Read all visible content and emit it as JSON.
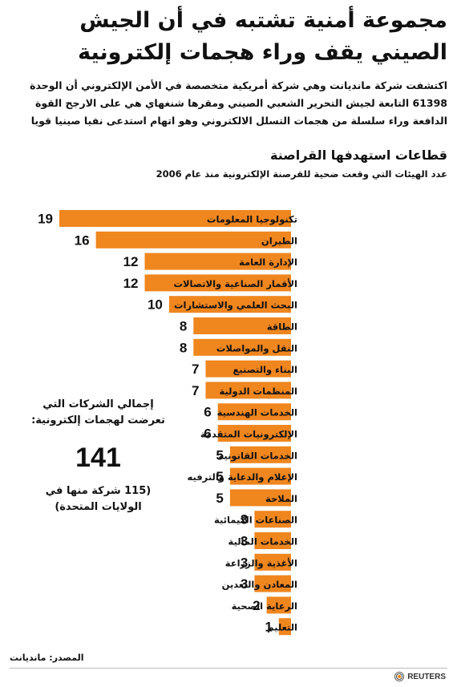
{
  "title": "مجموعة أمنية تشتبه في أن الجيش الصيني يقف وراء هجمات إلكترونية",
  "intro": "اكتشفت شركة مانديانت وهي شركة أمريكية متخصصة في الأمن الإلكتروني أن الوحدة 61398 التابعة لجيش التحرير الشعبي الصيني ومقرها شنغهاي هي على الارجح القوة الدافعة وراء سلسلة من هجمات التسلل الالكتروني وهو اتهام استدعى نفيا صينيا قويا",
  "total": {
    "label": "إجمالي الشركات التي تعرضت لهجمات إلكترونية:",
    "value": "141",
    "note": "(115 شركة منها في الولايات المتحدة)"
  },
  "source": "المصدر: مانديانت",
  "brand": {
    "name": "REUTERS"
  },
  "colors": {
    "bar": "#f0861e"
  },
  "chart_data": {
    "type": "bar",
    "orientation": "horizontal",
    "title": "قطاعات استهدفها القراصنة",
    "subtitle": "عدد الهيئات التي وقعت ضحية للقرصنة الإلكترونية منذ عام 2006",
    "categories": [
      "تكنولوجيا المعلومات",
      "الطيران",
      "الإدارة العامة",
      "الأقمار الصناعية والاتصالات",
      "البحث العلمي والاستشارات",
      "الطاقة",
      "النقل والمواصلات",
      "البناء والتصنيع",
      "المنظمات الدولية",
      "الخدمات الهندسية",
      "الإلكترونيات المتقدمة",
      "الخدمات القانونية",
      "الإعلام والدعاية والترفيه",
      "الملاحة",
      "الصناعات الكيمائية",
      "الخدمات المالية",
      "الأغذية والزراعة",
      "المعادن والتعدين",
      "الرعاية الصحية",
      "التعليم"
    ],
    "values": [
      19,
      16,
      12,
      12,
      10,
      8,
      8,
      7,
      7,
      6,
      6,
      5,
      5,
      5,
      3,
      3,
      3,
      3,
      2,
      1
    ],
    "xlim": [
      0,
      19
    ],
    "grid": false,
    "legend": "none"
  }
}
